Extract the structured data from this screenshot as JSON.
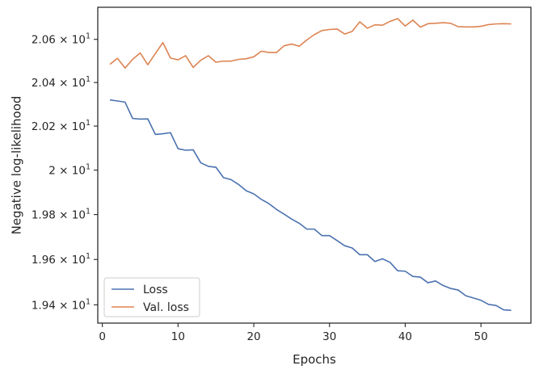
{
  "chart_data": {
    "type": "line",
    "title": "",
    "xlabel": "Epochs",
    "ylabel": "Negative log-likelihood",
    "xlim": [
      -0.6,
      56.6
    ],
    "ylim": [
      19.32,
      20.75
    ],
    "yscale": "log",
    "grid": false,
    "legend_position": "bottom-left",
    "x_ticks": [
      0,
      10,
      20,
      30,
      40,
      50
    ],
    "x_tick_labels": [
      "0",
      "10",
      "20",
      "30",
      "40",
      "50"
    ],
    "y_ticks": [
      19.4,
      19.6,
      19.8,
      20.0,
      20.2,
      20.4,
      20.6
    ],
    "y_tick_labels": [
      {
        "mantissa": "1.94",
        "exp": "1"
      },
      {
        "mantissa": "1.96",
        "exp": "1"
      },
      {
        "mantissa": "1.98",
        "exp": "1"
      },
      {
        "mantissa": "2",
        "exp": "1"
      },
      {
        "mantissa": "2.02",
        "exp": "1"
      },
      {
        "mantissa": "2.04",
        "exp": "1"
      },
      {
        "mantissa": "2.06",
        "exp": "1"
      }
    ],
    "x": [
      1,
      2,
      3,
      4,
      5,
      6,
      7,
      8,
      9,
      10,
      11,
      12,
      13,
      14,
      15,
      16,
      17,
      18,
      19,
      20,
      21,
      22,
      23,
      24,
      25,
      26,
      27,
      28,
      29,
      30,
      31,
      32,
      33,
      34,
      35,
      36,
      37,
      38,
      39,
      40,
      41,
      42,
      43,
      44,
      45,
      46,
      47,
      48,
      49,
      50,
      51,
      52,
      53,
      54
    ],
    "series": [
      {
        "name": "Loss",
        "color": "#4c72b0",
        "values": [
          20.32,
          20.315,
          20.31,
          20.235,
          20.232,
          20.233,
          20.162,
          20.165,
          20.17,
          20.097,
          20.09,
          20.092,
          20.033,
          20.017,
          20.013,
          19.966,
          19.957,
          19.935,
          19.907,
          19.893,
          19.868,
          19.849,
          19.823,
          19.802,
          19.78,
          19.761,
          19.735,
          19.735,
          19.706,
          19.706,
          19.684,
          19.661,
          19.651,
          19.621,
          19.621,
          19.591,
          19.603,
          19.587,
          19.55,
          19.548,
          19.525,
          19.522,
          19.497,
          19.505,
          19.485,
          19.472,
          19.465,
          19.44,
          19.43,
          19.42,
          19.402,
          19.397,
          19.378,
          19.376
        ]
      },
      {
        "name": "Val. loss",
        "color": "#dd8452",
        "values": [
          20.484,
          20.512,
          20.467,
          20.507,
          20.537,
          20.482,
          20.534,
          20.585,
          20.513,
          20.505,
          20.524,
          20.47,
          20.503,
          20.524,
          20.494,
          20.499,
          20.499,
          20.507,
          20.51,
          20.519,
          20.545,
          20.539,
          20.539,
          20.57,
          20.578,
          20.568,
          20.597,
          20.622,
          20.641,
          20.646,
          20.648,
          20.625,
          20.637,
          20.682,
          20.652,
          20.668,
          20.666,
          20.684,
          20.697,
          20.662,
          20.69,
          20.657,
          20.673,
          20.675,
          20.678,
          20.675,
          20.659,
          20.658,
          20.658,
          20.661,
          20.669,
          20.672,
          20.673,
          20.672
        ]
      }
    ]
  }
}
